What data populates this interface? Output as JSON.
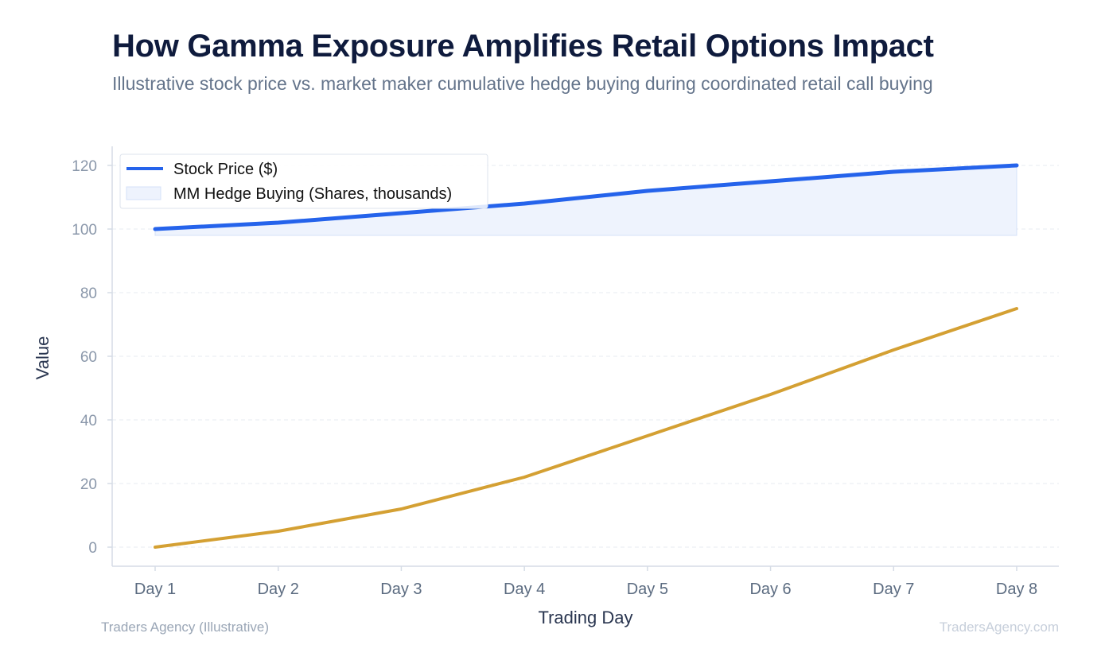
{
  "header": {
    "title": "How Gamma Exposure Amplifies Retail Options Impact",
    "subtitle": "Illustrative stock price vs. market maker cumulative hedge buying during coordinated retail call buying"
  },
  "footer": {
    "source": "Traders Agency (Illustrative)",
    "watermark": "TradersAgency.com"
  },
  "chart_data": {
    "type": "line",
    "xlabel": "Trading Day",
    "ylabel": "Value",
    "categories": [
      "Day 1",
      "Day 2",
      "Day 3",
      "Day 4",
      "Day 5",
      "Day 6",
      "Day 7",
      "Day 8"
    ],
    "ylim": [
      -6,
      126
    ],
    "yticks": [
      0,
      20,
      40,
      60,
      80,
      100,
      120
    ],
    "grid": true,
    "legend_position": "top-left",
    "series": [
      {
        "name": "Stock Price ($)",
        "style": "line",
        "color": "#2563eb",
        "values": [
          100,
          102,
          105,
          108,
          112,
          115,
          118,
          120
        ]
      },
      {
        "name": "MM Hedge Buying (Shares, thousands)",
        "style": "area",
        "fill_color": "#eef3fd",
        "edge_color": "#d4e0f8",
        "area_baseline": 98,
        "area_values": [
          100,
          102,
          105,
          108,
          112,
          115,
          118,
          120
        ],
        "line_color": "#d4a033",
        "values": [
          0,
          5,
          12,
          22,
          35,
          48,
          62,
          75
        ]
      }
    ]
  }
}
